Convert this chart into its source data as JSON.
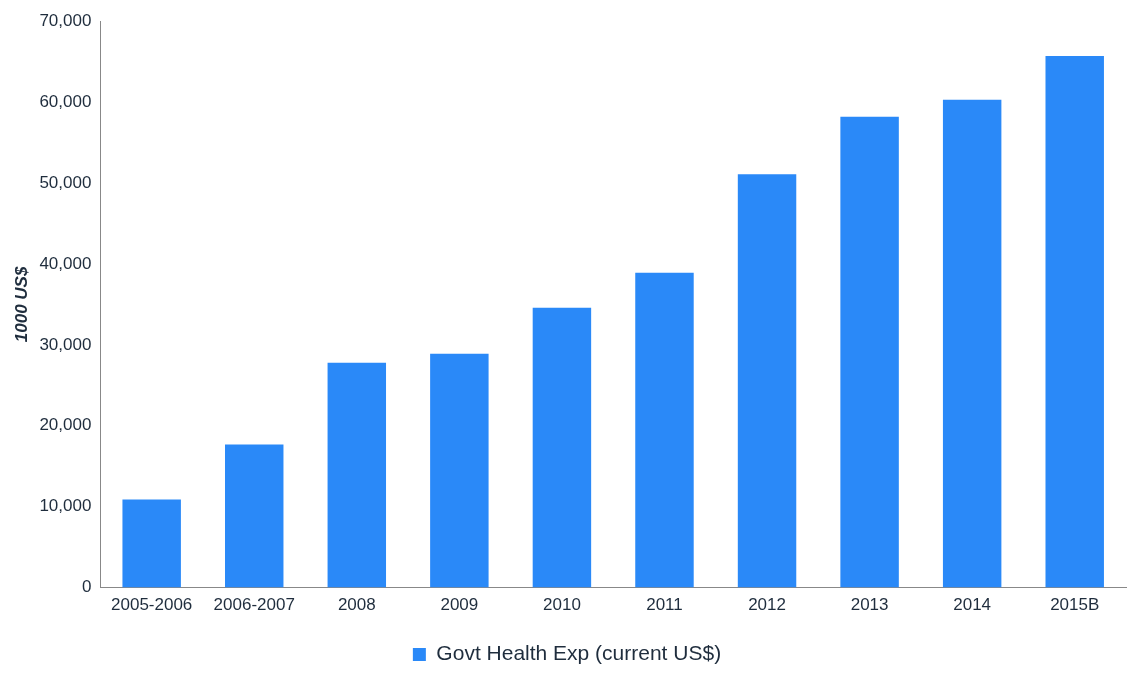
{
  "chart_data": {
    "type": "bar",
    "ylabel": "1000 US$",
    "categories": [
      "2005-2006",
      "2006-2007",
      "2008",
      "2009",
      "2010",
      "2011",
      "2012",
      "2013",
      "2014",
      "2015B"
    ],
    "series": [
      {
        "name": "Govt Health Exp (current US$)",
        "color": "#2a89f8",
        "values": [
          10900,
          17700,
          27800,
          28900,
          34600,
          38900,
          51100,
          58200,
          60300,
          65700
        ]
      }
    ],
    "ylim": [
      0,
      70000
    ],
    "yticks": [
      {
        "value": 0,
        "label": "0"
      },
      {
        "value": 10000,
        "label": "10,000"
      },
      {
        "value": 20000,
        "label": "20,000"
      },
      {
        "value": 30000,
        "label": "30,000"
      },
      {
        "value": 40000,
        "label": "40,000"
      },
      {
        "value": 50000,
        "label": "50,000"
      },
      {
        "value": 60000,
        "label": "60,000"
      },
      {
        "value": 70000,
        "label": "70,000"
      }
    ],
    "grid": false,
    "legend": "bottom"
  }
}
